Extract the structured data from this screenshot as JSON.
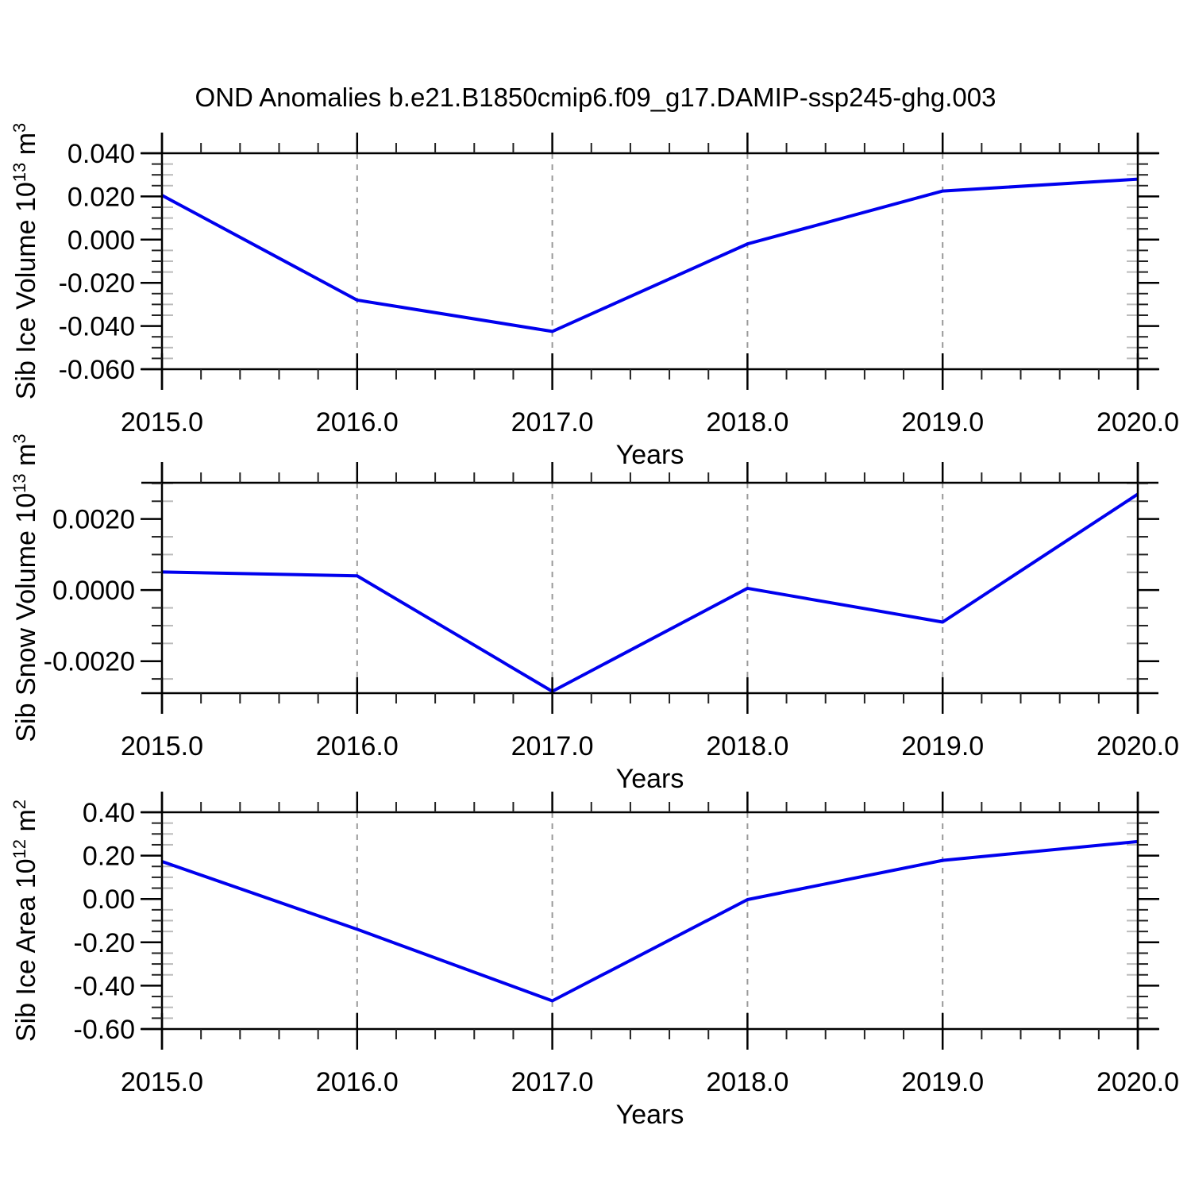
{
  "title": "OND Anomalies b.e21.B1850cmip6.f09_g17.DAMIP-ssp245-ghg.003",
  "colors": {
    "line": "#0000ee",
    "grid": "#999999",
    "axis": "#000000",
    "minor_tick": "#222222",
    "inner_stub": "#bbbbbb",
    "text": "#000000"
  },
  "chart_data": [
    {
      "id": "sib-ice-volume",
      "type": "line",
      "ylabel": "Sib Ice Volume 10^13 m^3",
      "ylabel_parts": [
        {
          "t": "Sib Ice Volume 10"
        },
        {
          "t": "13",
          "sup": true
        },
        {
          "t": " m"
        },
        {
          "t": "3",
          "sup": true
        }
      ],
      "xlabel": "Years",
      "x": [
        2015,
        2016,
        2017,
        2018,
        2019,
        2020
      ],
      "values": [
        0.0205,
        -0.028,
        -0.0425,
        -0.002,
        0.0225,
        0.028
      ],
      "xlim": [
        2015,
        2020
      ],
      "ylim": [
        -0.06,
        0.04
      ],
      "xtick_labels": [
        "2015.0",
        "2016.0",
        "2017.0",
        "2018.0",
        "2019.0",
        "2020.0"
      ],
      "yticks": [
        {
          "v": 0.04,
          "label": "0.040"
        },
        {
          "v": 0.02,
          "label": "0.020"
        },
        {
          "v": 0.0,
          "label": "0.000"
        },
        {
          "v": -0.02,
          "label": "-0.020"
        },
        {
          "v": -0.04,
          "label": "-0.040"
        },
        {
          "v": -0.06,
          "label": "-0.060"
        }
      ],
      "yminor_step": 0.005,
      "xminor_step": 0.2,
      "grid_x": [
        2016,
        2017,
        2018,
        2019
      ],
      "grid": "vertical-dashed",
      "legend": "none"
    },
    {
      "id": "sib-snow-volume",
      "type": "line",
      "ylabel": "Sib Snow Volume 10^13 m^3",
      "ylabel_parts": [
        {
          "t": "Sib Snow Volume 10"
        },
        {
          "t": "13",
          "sup": true
        },
        {
          "t": " m"
        },
        {
          "t": "3",
          "sup": true
        }
      ],
      "xlabel": "Years",
      "x": [
        2015,
        2016,
        2017,
        2018,
        2019,
        2020
      ],
      "values": [
        0.00051,
        0.0004,
        -0.00285,
        5e-05,
        -0.0009,
        0.0027
      ],
      "xlim": [
        2015,
        2020
      ],
      "ylim": [
        -0.0029,
        0.00302
      ],
      "xtick_labels": [
        "2015.0",
        "2016.0",
        "2017.0",
        "2018.0",
        "2019.0",
        "2020.0"
      ],
      "yticks": [
        {
          "v": 0.002,
          "label": "0.0020"
        },
        {
          "v": 0.0,
          "label": "0.0000"
        },
        {
          "v": -0.002,
          "label": "-0.0020"
        }
      ],
      "yminor_step": 0.0005,
      "xminor_step": 0.2,
      "grid_x": [
        2016,
        2017,
        2018,
        2019
      ],
      "grid": "vertical-dashed",
      "legend": "none"
    },
    {
      "id": "sib-ice-area",
      "type": "line",
      "ylabel": "Sib Ice Area 10^12 m^2",
      "ylabel_parts": [
        {
          "t": "Sib Ice Area 10"
        },
        {
          "t": "12",
          "sup": true
        },
        {
          "t": " m"
        },
        {
          "t": "2",
          "sup": true
        }
      ],
      "xlabel": "Years",
      "x": [
        2015,
        2016,
        2017,
        2018,
        2019,
        2020
      ],
      "values": [
        0.173,
        -0.14,
        -0.47,
        -0.003,
        0.178,
        0.265
      ],
      "xlim": [
        2015,
        2020
      ],
      "ylim": [
        -0.6,
        0.4
      ],
      "xtick_labels": [
        "2015.0",
        "2016.0",
        "2017.0",
        "2018.0",
        "2019.0",
        "2020.0"
      ],
      "yticks": [
        {
          "v": 0.4,
          "label": "0.40"
        },
        {
          "v": 0.2,
          "label": "0.20"
        },
        {
          "v": 0.0,
          "label": "0.00"
        },
        {
          "v": -0.2,
          "label": "-0.20"
        },
        {
          "v": -0.4,
          "label": "-0.40"
        },
        {
          "v": -0.6,
          "label": "-0.60"
        }
      ],
      "yminor_step": 0.05,
      "xminor_step": 0.2,
      "grid_x": [
        2016,
        2017,
        2018,
        2019
      ],
      "grid": "vertical-dashed",
      "legend": "none"
    }
  ]
}
